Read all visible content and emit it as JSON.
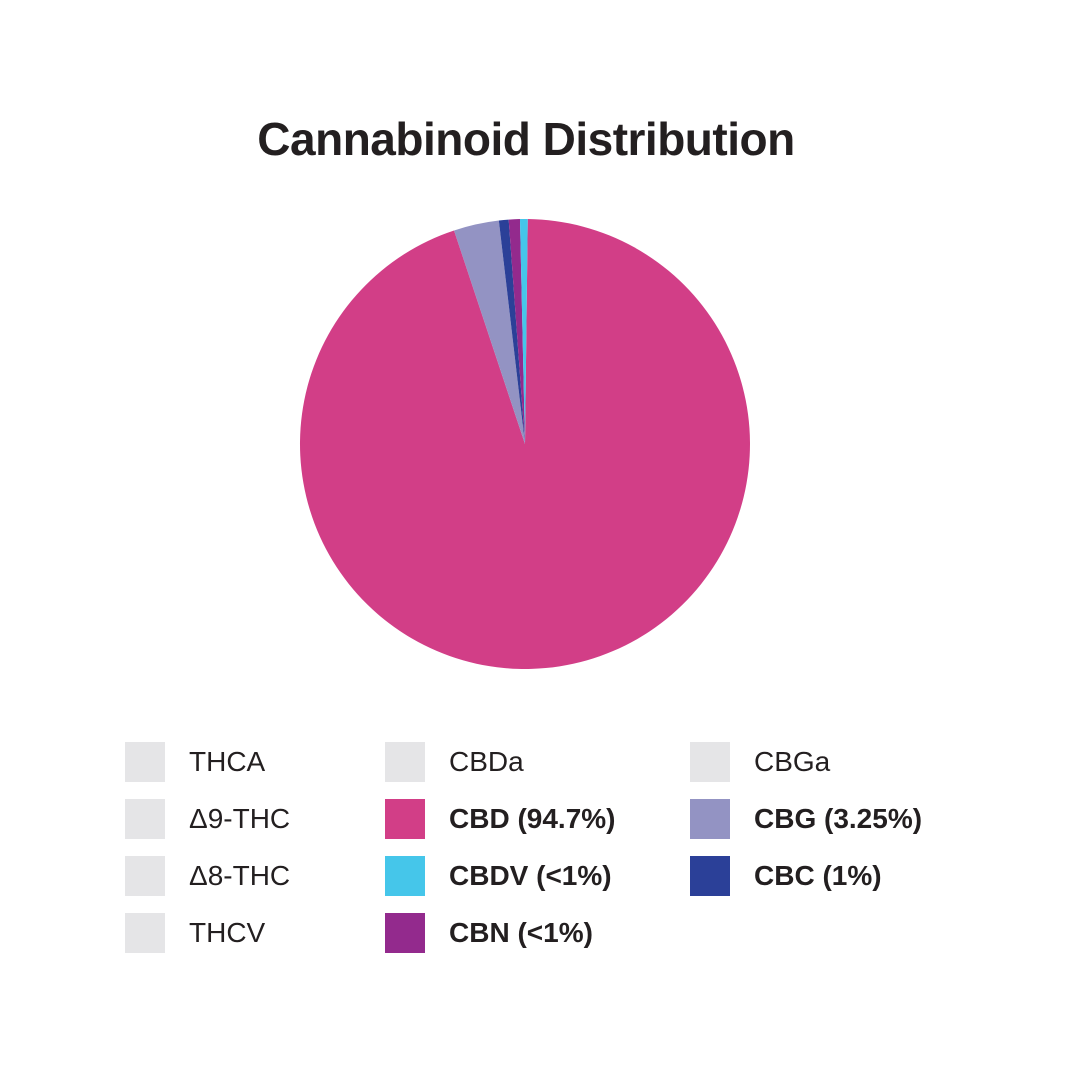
{
  "chart_data": {
    "type": "pie",
    "title": "Cannabinoid Distribution",
    "start_angle_deg": 0.7,
    "direction": "clockwise",
    "slices": [
      {
        "name": "CBD",
        "value": 94.7,
        "color": "#d23e87"
      },
      {
        "name": "CBG",
        "value": 3.25,
        "color": "#9393c3"
      },
      {
        "name": "CBC",
        "value": 0.7,
        "color": "#2b4098"
      },
      {
        "name": "CBN",
        "value": 0.8,
        "color": "#932a8d"
      },
      {
        "name": "CBDV",
        "value": 0.55,
        "color": "#45c6ea"
      }
    ],
    "legend": {
      "placement": "bottom",
      "columns": [
        [
          {
            "label": "THCA",
            "color": "#e5e5e7",
            "active": false
          },
          {
            "label": "Δ9-THC",
            "color": "#e5e5e7",
            "active": false
          },
          {
            "label": "Δ8-THC",
            "color": "#e5e5e7",
            "active": false
          },
          {
            "label": "THCV",
            "color": "#e5e5e7",
            "active": false
          }
        ],
        [
          {
            "label": "CBDa",
            "color": "#e5e5e7",
            "active": false
          },
          {
            "label": "CBD (94.7%)",
            "color": "#d23e87",
            "active": true
          },
          {
            "label": "CBDV (<1%)",
            "color": "#45c6ea",
            "active": true
          },
          {
            "label": "CBN (<1%)",
            "color": "#932a8d",
            "active": true
          }
        ],
        [
          {
            "label": "CBGa",
            "color": "#e5e5e7",
            "active": false
          },
          {
            "label": "CBG (3.25%)",
            "color": "#9393c3",
            "active": true
          },
          {
            "label": "CBC (1%)",
            "color": "#2b4098",
            "active": true
          }
        ]
      ]
    }
  }
}
